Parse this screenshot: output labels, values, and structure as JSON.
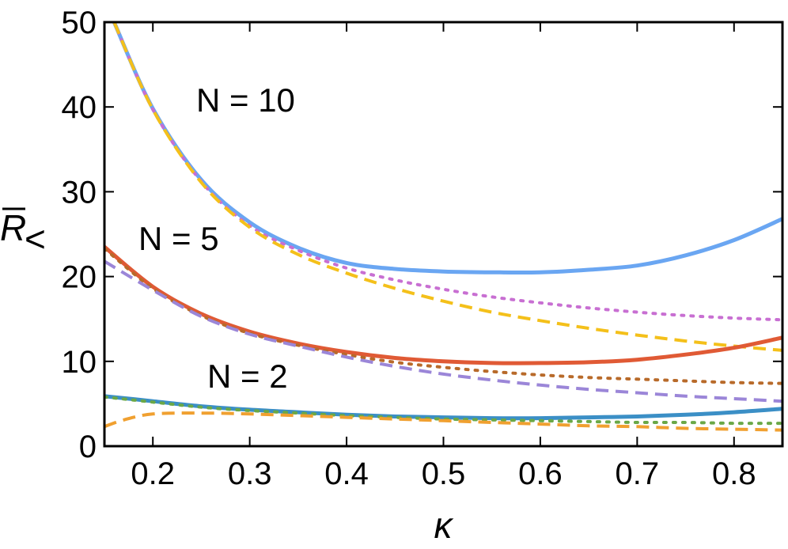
{
  "chart_data": {
    "type": "line",
    "xlim": [
      0.15,
      0.85
    ],
    "ylim": [
      0,
      50
    ],
    "x_ticks": [
      "0.2",
      "0.3",
      "0.4",
      "0.5",
      "0.6",
      "0.7",
      "0.8"
    ],
    "y_ticks": [
      "0",
      "10",
      "20",
      "30",
      "40",
      "50"
    ],
    "xlabel": "κ",
    "ylabel": {
      "base": "R",
      "subscript": "<"
    },
    "annotations": [
      {
        "text": "N = 10",
        "x": 0.235,
        "y": 40
      },
      {
        "text": "N = 5",
        "x": 0.18,
        "y": 23
      },
      {
        "text": "N = 2",
        "x": 0.26,
        "y": 8
      }
    ],
    "series": [
      {
        "color": "#6aa6f2",
        "style": "solid",
        "x": [
          0.16,
          0.2,
          0.25,
          0.3,
          0.35,
          0.4,
          0.45,
          0.5,
          0.55,
          0.6,
          0.65,
          0.7,
          0.75,
          0.8,
          0.85
        ],
        "y": [
          50.0,
          39.8,
          31.4,
          26.4,
          23.4,
          21.6,
          20.9,
          20.6,
          20.5,
          20.5,
          20.8,
          21.3,
          22.5,
          24.3,
          26.8
        ]
      },
      {
        "color": "#c86fd2",
        "style": "dotted",
        "x": [
          0.16,
          0.2,
          0.25,
          0.3,
          0.35,
          0.4,
          0.45,
          0.5,
          0.55,
          0.6,
          0.65,
          0.7,
          0.75,
          0.8,
          0.85
        ],
        "y": [
          50.0,
          39.7,
          31.2,
          26.0,
          23.1,
          21.0,
          19.6,
          18.5,
          17.6,
          16.9,
          16.3,
          15.8,
          15.4,
          15.1,
          14.9
        ]
      },
      {
        "color": "#f4c01a",
        "style": "dashed",
        "x": [
          0.16,
          0.2,
          0.25,
          0.3,
          0.35,
          0.4,
          0.45,
          0.5,
          0.55,
          0.6,
          0.65,
          0.7,
          0.75,
          0.8,
          0.85
        ],
        "y": [
          50.0,
          39.7,
          31.1,
          25.8,
          22.6,
          20.4,
          18.6,
          17.1,
          15.8,
          14.8,
          13.9,
          13.1,
          12.4,
          11.8,
          11.3
        ]
      },
      {
        "color": "#e05a35",
        "style": "solid",
        "x": [
          0.15,
          0.2,
          0.25,
          0.3,
          0.35,
          0.4,
          0.45,
          0.5,
          0.55,
          0.6,
          0.65,
          0.7,
          0.75,
          0.8,
          0.85
        ],
        "y": [
          23.5,
          18.8,
          15.6,
          13.5,
          12.1,
          11.1,
          10.4,
          10.0,
          9.8,
          9.8,
          9.9,
          10.2,
          10.8,
          11.6,
          12.8
        ]
      },
      {
        "color": "#b86a2a",
        "style": "dotted",
        "x": [
          0.15,
          0.2,
          0.25,
          0.3,
          0.35,
          0.4,
          0.45,
          0.5,
          0.55,
          0.6,
          0.65,
          0.7,
          0.75,
          0.8,
          0.85
        ],
        "y": [
          23.3,
          18.6,
          15.4,
          13.3,
          11.9,
          10.8,
          9.9,
          9.3,
          8.8,
          8.4,
          8.1,
          7.9,
          7.7,
          7.5,
          7.4
        ]
      },
      {
        "color": "#9b86d8",
        "style": "dashed",
        "x": [
          0.15,
          0.2,
          0.25,
          0.3,
          0.35,
          0.4,
          0.45,
          0.5,
          0.55,
          0.6,
          0.65,
          0.7,
          0.75,
          0.8,
          0.85
        ],
        "y": [
          21.8,
          18.4,
          15.3,
          13.2,
          11.8,
          10.5,
          9.4,
          8.5,
          7.8,
          7.2,
          6.7,
          6.3,
          5.9,
          5.6,
          5.3
        ]
      },
      {
        "color": "#3b8fc6",
        "style": "solid",
        "x": [
          0.15,
          0.2,
          0.25,
          0.3,
          0.35,
          0.4,
          0.45,
          0.5,
          0.55,
          0.6,
          0.65,
          0.7,
          0.75,
          0.8,
          0.85
        ],
        "y": [
          5.9,
          5.3,
          4.7,
          4.3,
          4.0,
          3.7,
          3.5,
          3.4,
          3.3,
          3.3,
          3.4,
          3.5,
          3.7,
          4.0,
          4.4
        ]
      },
      {
        "color": "#6aa847",
        "style": "dotted",
        "x": [
          0.15,
          0.2,
          0.25,
          0.3,
          0.35,
          0.4,
          0.45,
          0.5,
          0.55,
          0.6,
          0.65,
          0.7,
          0.75,
          0.8,
          0.85
        ],
        "y": [
          5.8,
          5.2,
          4.6,
          4.2,
          3.9,
          3.6,
          3.4,
          3.2,
          3.1,
          3.0,
          2.9,
          2.8,
          2.8,
          2.7,
          2.7
        ]
      },
      {
        "color": "#f0a030",
        "style": "dashed",
        "x": [
          0.15,
          0.17,
          0.2,
          0.25,
          0.3,
          0.35,
          0.4,
          0.45,
          0.5,
          0.55,
          0.6,
          0.65,
          0.7,
          0.75,
          0.8,
          0.85
        ],
        "y": [
          2.3,
          3.1,
          3.8,
          3.9,
          3.8,
          3.6,
          3.4,
          3.2,
          3.0,
          2.8,
          2.6,
          2.4,
          2.3,
          2.1,
          2.0,
          1.9
        ]
      }
    ]
  }
}
